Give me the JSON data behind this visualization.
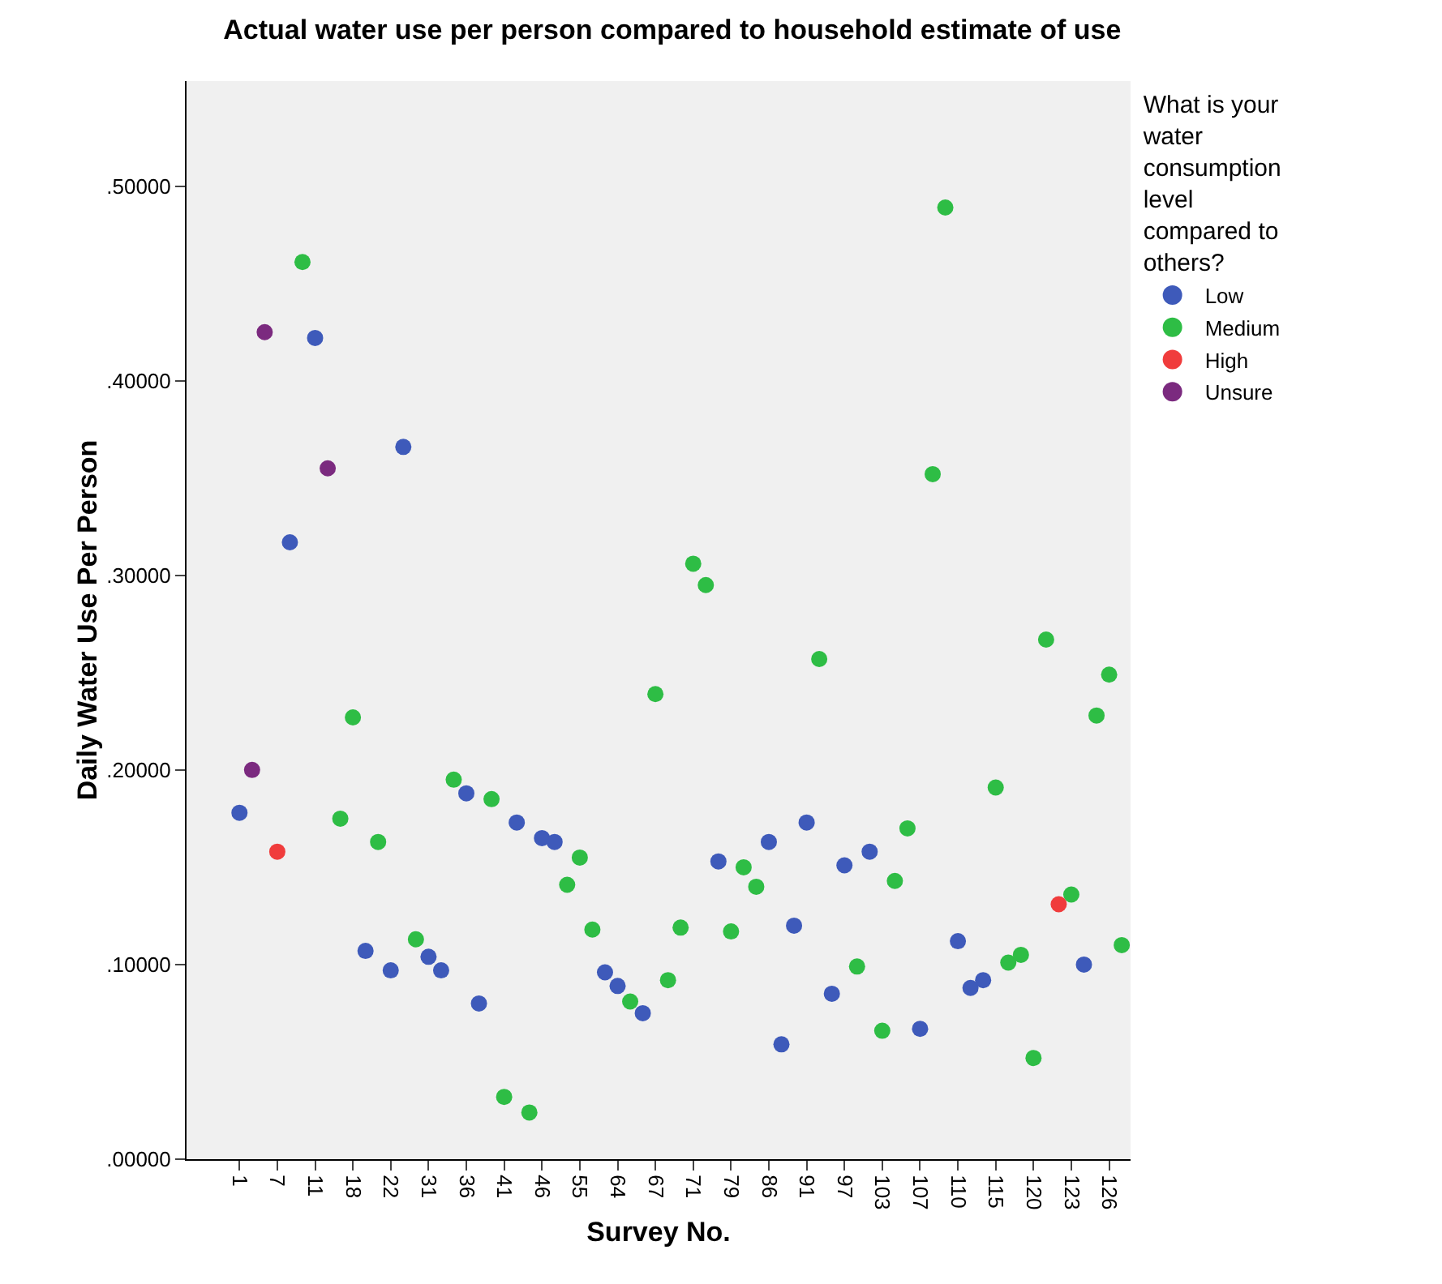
{
  "chart_data": {
    "type": "scatter",
    "title": "Actual water use per person compared to household estimate of use",
    "xlabel": "Survey No.",
    "ylabel": "Daily Water Use Per Person",
    "legend_title": "What is your water consumption level compared to others?",
    "categories": [
      "1",
      null,
      null,
      "7",
      null,
      null,
      "11",
      null,
      null,
      "18",
      null,
      null,
      "22",
      null,
      null,
      "31",
      null,
      null,
      "36",
      null,
      null,
      "41",
      null,
      null,
      "46",
      null,
      null,
      "55",
      null,
      null,
      "64",
      null,
      null,
      "67",
      null,
      null,
      "71",
      null,
      null,
      "79",
      null,
      null,
      "86",
      null,
      null,
      "91",
      null,
      null,
      "97",
      null,
      null,
      "103",
      null,
      null,
      "107",
      null,
      null,
      "110",
      null,
      null,
      "115",
      null,
      null,
      "120",
      null,
      null,
      "123",
      null,
      null,
      "126",
      null
    ],
    "series": [
      {
        "name": "Low",
        "color": "#3e5aba",
        "values": [
          0.178,
          null,
          null,
          null,
          0.317,
          null,
          0.422,
          null,
          null,
          null,
          0.107,
          null,
          0.097,
          0.366,
          null,
          0.104,
          0.097,
          null,
          0.188,
          0.08,
          null,
          null,
          0.173,
          null,
          0.165,
          0.163,
          null,
          null,
          null,
          0.096,
          0.089,
          null,
          0.075,
          null,
          null,
          null,
          null,
          null,
          0.153,
          null,
          null,
          null,
          0.163,
          0.059,
          0.12,
          0.173,
          null,
          0.085,
          0.151,
          null,
          0.158,
          null,
          null,
          null,
          0.067,
          null,
          null,
          0.112,
          0.088,
          0.092,
          null,
          null,
          null,
          null,
          null,
          null,
          null,
          0.1,
          null,
          null,
          null
        ]
      },
      {
        "name": "Medium",
        "color": "#2ebd45",
        "values": [
          null,
          null,
          null,
          null,
          null,
          0.461,
          null,
          null,
          0.175,
          0.227,
          null,
          0.163,
          null,
          null,
          0.113,
          null,
          null,
          0.195,
          null,
          null,
          0.185,
          0.032,
          null,
          0.024,
          null,
          null,
          0.141,
          0.155,
          0.118,
          null,
          null,
          0.081,
          null,
          0.239,
          0.092,
          0.119,
          0.306,
          0.295,
          null,
          0.117,
          0.15,
          0.14,
          null,
          null,
          null,
          null,
          0.257,
          null,
          null,
          0.099,
          null,
          0.066,
          0.143,
          0.17,
          null,
          0.352,
          0.489,
          null,
          null,
          null,
          0.191,
          0.101,
          0.105,
          0.052,
          0.267,
          null,
          0.136,
          null,
          0.228,
          0.249,
          0.11
        ]
      },
      {
        "name": "High",
        "color": "#f03c3c",
        "values": [
          null,
          null,
          null,
          0.158,
          null,
          null,
          null,
          null,
          null,
          null,
          null,
          null,
          null,
          null,
          null,
          null,
          null,
          null,
          null,
          null,
          null,
          null,
          null,
          null,
          null,
          null,
          null,
          null,
          null,
          null,
          null,
          null,
          null,
          null,
          null,
          null,
          null,
          null,
          null,
          null,
          null,
          null,
          null,
          null,
          null,
          null,
          null,
          null,
          null,
          null,
          null,
          null,
          null,
          null,
          null,
          null,
          null,
          null,
          null,
          null,
          null,
          null,
          null,
          null,
          null,
          0.131,
          null,
          null,
          null,
          null,
          null
        ]
      },
      {
        "name": "Unsure",
        "color": "#7b2a7f",
        "values": [
          null,
          0.2,
          0.425,
          null,
          null,
          null,
          null,
          0.355,
          null,
          null,
          null,
          null,
          null,
          null,
          null,
          null,
          null,
          null,
          null,
          null,
          null,
          null,
          null,
          null,
          null,
          null,
          null,
          null,
          null,
          null,
          null,
          null,
          null,
          null,
          null,
          null,
          null,
          null,
          null,
          null,
          null,
          null,
          null,
          null,
          null,
          null,
          null,
          null,
          null,
          null,
          null,
          null,
          null,
          null,
          null,
          null,
          null,
          null,
          null,
          null,
          null,
          null,
          null,
          null,
          null,
          null,
          null,
          null,
          null,
          null,
          null
        ]
      }
    ],
    "ylim": [
      0,
      0.554
    ],
    "yticks": [
      {
        "value": 0,
        "label": ".00000"
      },
      {
        "value": 0.1,
        "label": ".10000"
      },
      {
        "value": 0.2,
        "label": ".20000"
      },
      {
        "value": 0.3,
        "label": ".30000"
      },
      {
        "value": 0.4,
        "label": ".40000"
      },
      {
        "value": 0.5,
        "label": ".50000"
      }
    ],
    "grid": false,
    "legend": "top right",
    "marker": "circle"
  }
}
